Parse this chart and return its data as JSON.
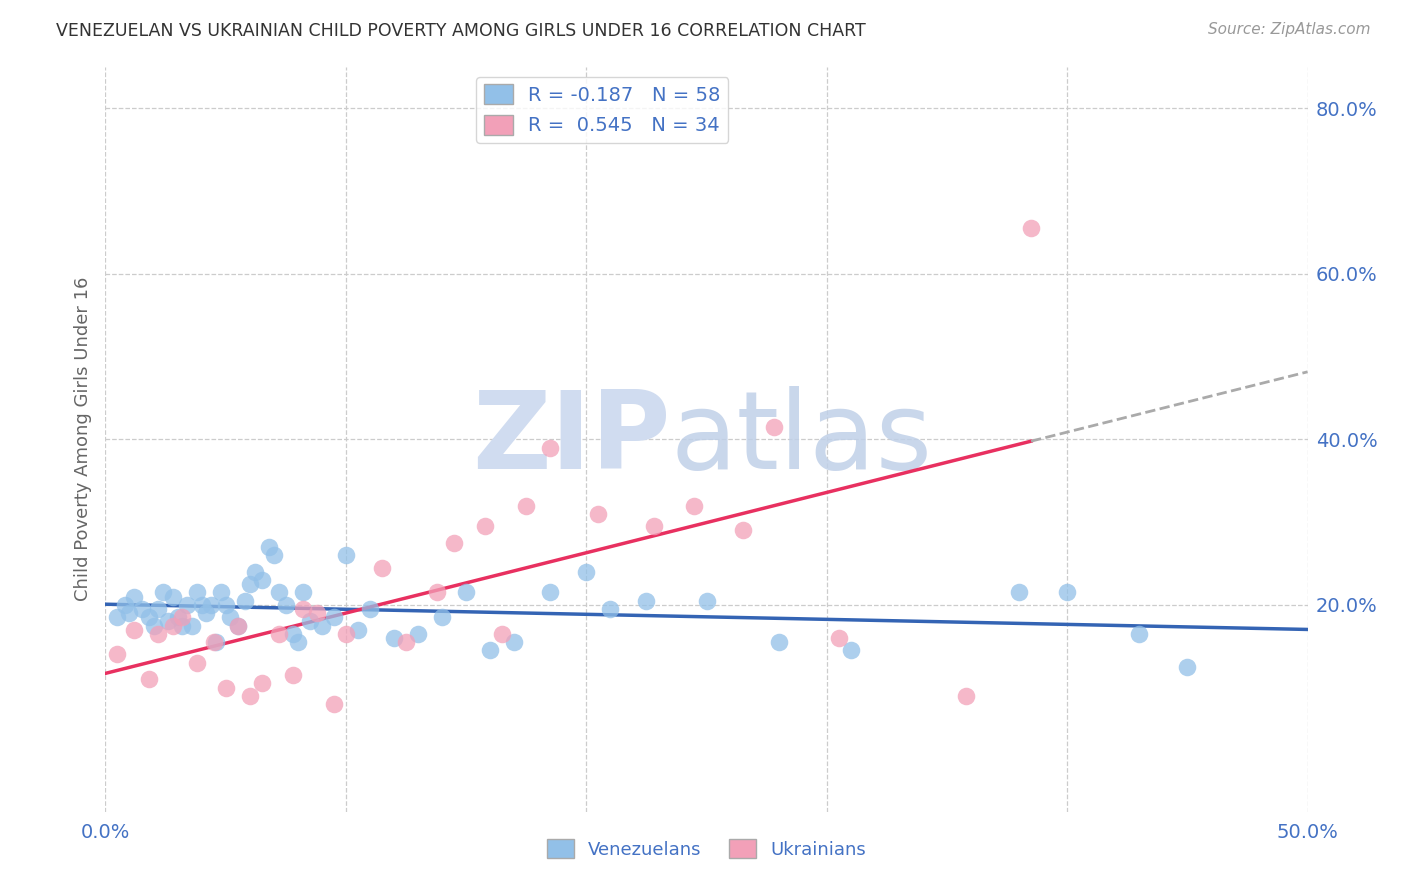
{
  "title": "VENEZUELAN VS UKRAINIAN CHILD POVERTY AMONG GIRLS UNDER 16 CORRELATION CHART",
  "source": "Source: ZipAtlas.com",
  "ylabel": "Child Poverty Among Girls Under 16",
  "xlim": [
    0.0,
    0.5
  ],
  "ylim": [
    -0.05,
    0.85
  ],
  "venezuelan_color": "#92C0E8",
  "ukrainian_color": "#F2A0B8",
  "venezuelan_line_color": "#3464B4",
  "ukrainian_line_color": "#E83060",
  "r_venezuelan": -0.187,
  "n_venezuelan": 58,
  "r_ukrainian": 0.545,
  "n_ukrainian": 34,
  "background_color": "#FFFFFF",
  "label_color": "#4472C4",
  "venezuelan_x": [
    0.005,
    0.008,
    0.01,
    0.012,
    0.015,
    0.018,
    0.02,
    0.022,
    0.024,
    0.026,
    0.028,
    0.03,
    0.032,
    0.034,
    0.036,
    0.038,
    0.04,
    0.042,
    0.044,
    0.046,
    0.048,
    0.05,
    0.052,
    0.055,
    0.058,
    0.06,
    0.062,
    0.065,
    0.068,
    0.07,
    0.072,
    0.075,
    0.078,
    0.08,
    0.082,
    0.085,
    0.09,
    0.095,
    0.1,
    0.105,
    0.11,
    0.12,
    0.13,
    0.14,
    0.15,
    0.16,
    0.17,
    0.185,
    0.2,
    0.21,
    0.225,
    0.25,
    0.28,
    0.31,
    0.38,
    0.4,
    0.43,
    0.45
  ],
  "venezuelan_y": [
    0.185,
    0.2,
    0.19,
    0.21,
    0.195,
    0.185,
    0.175,
    0.195,
    0.215,
    0.18,
    0.21,
    0.185,
    0.175,
    0.2,
    0.175,
    0.215,
    0.2,
    0.19,
    0.2,
    0.155,
    0.215,
    0.2,
    0.185,
    0.175,
    0.205,
    0.225,
    0.24,
    0.23,
    0.27,
    0.26,
    0.215,
    0.2,
    0.165,
    0.155,
    0.215,
    0.18,
    0.175,
    0.185,
    0.26,
    0.17,
    0.195,
    0.16,
    0.165,
    0.185,
    0.215,
    0.145,
    0.155,
    0.215,
    0.24,
    0.195,
    0.205,
    0.205,
    0.155,
    0.145,
    0.215,
    0.215,
    0.165,
    0.125
  ],
  "ukrainian_x": [
    0.005,
    0.012,
    0.018,
    0.022,
    0.028,
    0.032,
    0.038,
    0.045,
    0.05,
    0.055,
    0.06,
    0.065,
    0.072,
    0.078,
    0.082,
    0.088,
    0.095,
    0.1,
    0.115,
    0.125,
    0.138,
    0.145,
    0.158,
    0.165,
    0.175,
    0.185,
    0.205,
    0.228,
    0.245,
    0.265,
    0.278,
    0.305,
    0.358,
    0.385
  ],
  "ukrainian_y": [
    0.14,
    0.17,
    0.11,
    0.165,
    0.175,
    0.185,
    0.13,
    0.155,
    0.1,
    0.175,
    0.09,
    0.105,
    0.165,
    0.115,
    0.195,
    0.19,
    0.08,
    0.165,
    0.245,
    0.155,
    0.215,
    0.275,
    0.295,
    0.165,
    0.32,
    0.39,
    0.31,
    0.295,
    0.32,
    0.29,
    0.415,
    0.16,
    0.09,
    0.655
  ]
}
